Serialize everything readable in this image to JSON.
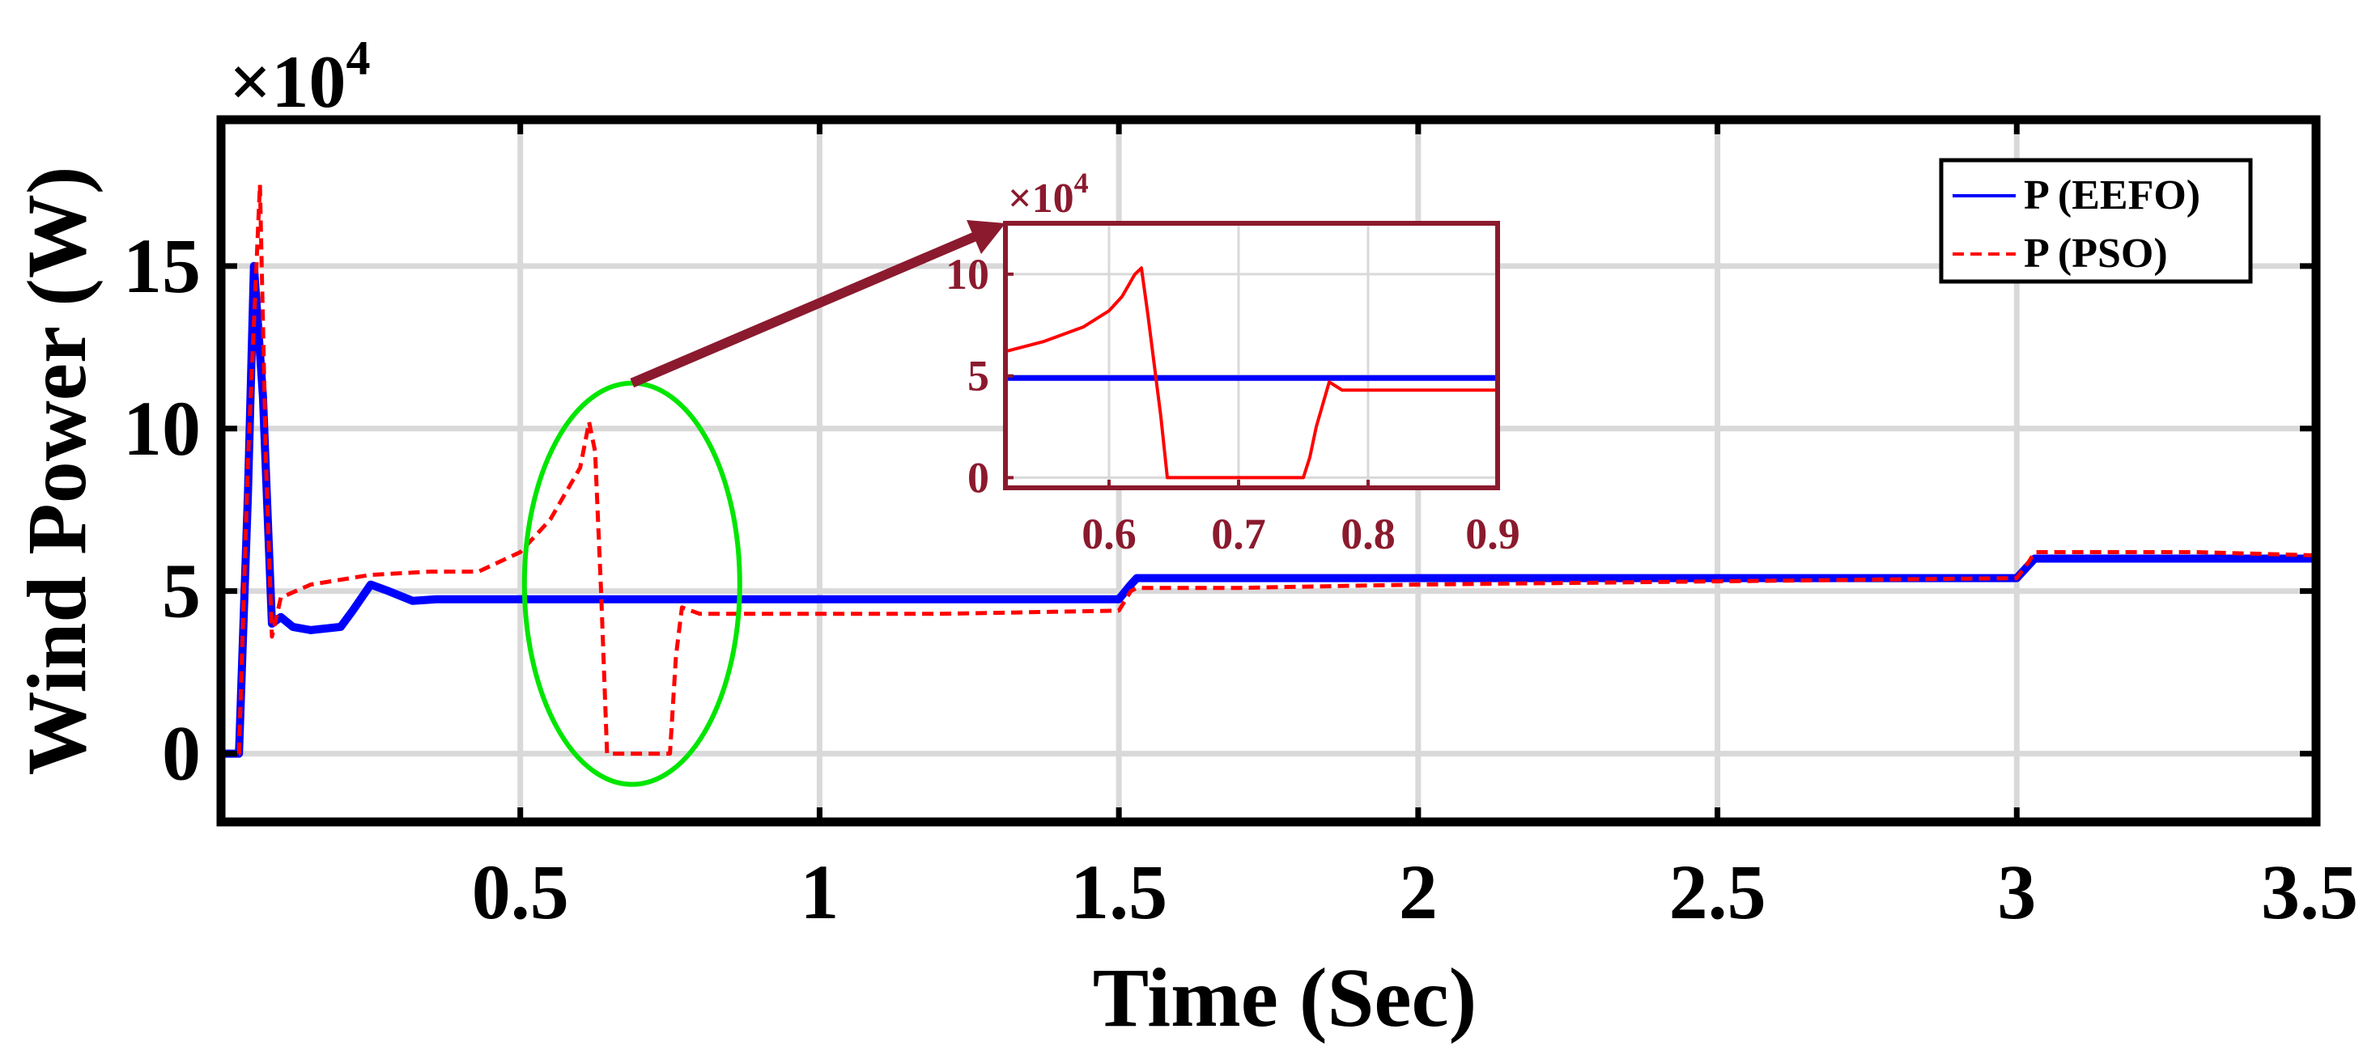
{
  "chart_data": [
    {
      "type": "line",
      "title": "",
      "xlabel": "Time (Sec)",
      "ylabel": "Wind Power (W)",
      "y_exponent_label": "×10",
      "y_exponent_power": "4",
      "xlim": [
        0,
        3.5
      ],
      "ylim": [
        -2.1,
        19.5
      ],
      "y_scale_note": "values in units of 10^4 W",
      "xticks": [
        0.5,
        1,
        1.5,
        2,
        2.5,
        3,
        3.5
      ],
      "xtick_labels": [
        "0.5",
        "1",
        "1.5",
        "2",
        "2.5",
        "3",
        "3.5"
      ],
      "yticks": [
        0,
        5,
        10,
        15
      ],
      "ytick_labels": [
        "0",
        "5",
        "10",
        "15"
      ],
      "grid": true,
      "legend": {
        "placement": "top-right",
        "entries": [
          "P (EEFO)",
          "P (PSO)"
        ]
      },
      "series": [
        {
          "name": "P (EEFO)",
          "color": "#0000ff",
          "style": "solid",
          "x": [
            0,
            0.03,
            0.045,
            0.055,
            0.07,
            0.085,
            0.1,
            0.12,
            0.15,
            0.2,
            0.22,
            0.25,
            0.28,
            0.32,
            0.36,
            0.45,
            0.6,
            0.8,
            1.0,
            1.2,
            1.4,
            1.5,
            1.52,
            1.53,
            1.7,
            2.0,
            2.5,
            3.0,
            3.02,
            3.03,
            3.3,
            3.5
          ],
          "y": [
            0,
            0,
            8,
            15,
            11,
            4,
            4.2,
            3.9,
            3.8,
            3.9,
            4.4,
            5.2,
            5.0,
            4.7,
            4.75,
            4.75,
            4.75,
            4.75,
            4.75,
            4.75,
            4.75,
            4.75,
            5.2,
            5.4,
            5.4,
            5.4,
            5.4,
            5.4,
            5.8,
            6.0,
            6.0,
            6.0
          ]
        },
        {
          "name": "P (PSO)",
          "color": "#ff0000",
          "style": "dashed",
          "x": [
            0,
            0.03,
            0.045,
            0.065,
            0.075,
            0.085,
            0.1,
            0.15,
            0.25,
            0.35,
            0.43,
            0.5,
            0.55,
            0.6,
            0.615,
            0.625,
            0.635,
            0.645,
            0.75,
            0.76,
            0.77,
            0.8,
            1.0,
            1.2,
            1.5,
            1.52,
            1.53,
            1.7,
            2.0,
            2.5,
            3.0,
            3.02,
            3.03,
            3.3,
            3.5
          ],
          "y": [
            0,
            0,
            9,
            17.5,
            9,
            3.6,
            4.8,
            5.2,
            5.5,
            5.6,
            5.6,
            6.2,
            7.2,
            8.8,
            10.2,
            9.3,
            5,
            0,
            0,
            3,
            4.5,
            4.3,
            4.3,
            4.3,
            4.4,
            5.0,
            5.1,
            5.1,
            5.2,
            5.3,
            5.4,
            5.9,
            6.2,
            6.2,
            6.1
          ]
        }
      ],
      "annotations": [
        {
          "type": "ellipse",
          "color": "#00e600",
          "center_x": 0.68,
          "center_y": 5.3,
          "note": "highlight of PSO transient"
        },
        {
          "type": "arrow",
          "color": "#8b1a2e",
          "from_x": 0.68,
          "from_y": 11.7,
          "to": "inset top-left"
        }
      ]
    },
    {
      "type": "line",
      "role": "inset",
      "xlim": [
        0.52,
        0.9
      ],
      "ylim": [
        -0.5,
        12.5
      ],
      "y_exponent_label": "×10",
      "y_exponent_power": "4",
      "xticks": [
        0.6,
        0.7,
        0.8,
        0.9
      ],
      "xtick_labels": [
        "0.6",
        "0.7",
        "0.8",
        "0.9"
      ],
      "yticks": [
        0,
        5,
        10
      ],
      "ytick_labels": [
        "0",
        "5",
        "10"
      ],
      "grid": true,
      "series": [
        {
          "name": "P (EEFO)",
          "color": "#0000ff",
          "x": [
            0.52,
            0.9
          ],
          "y": [
            4.9,
            4.9
          ]
        },
        {
          "name": "P (PSO)",
          "color": "#ff0000",
          "x": [
            0.52,
            0.55,
            0.58,
            0.6,
            0.61,
            0.62,
            0.625,
            0.63,
            0.64,
            0.645,
            0.75,
            0.755,
            0.76,
            0.77,
            0.78,
            0.9
          ],
          "y": [
            6.2,
            6.7,
            7.4,
            8.2,
            8.9,
            10.0,
            10.3,
            8.0,
            3.0,
            0,
            0,
            1.0,
            2.5,
            4.7,
            4.3,
            4.3
          ]
        }
      ]
    }
  ]
}
